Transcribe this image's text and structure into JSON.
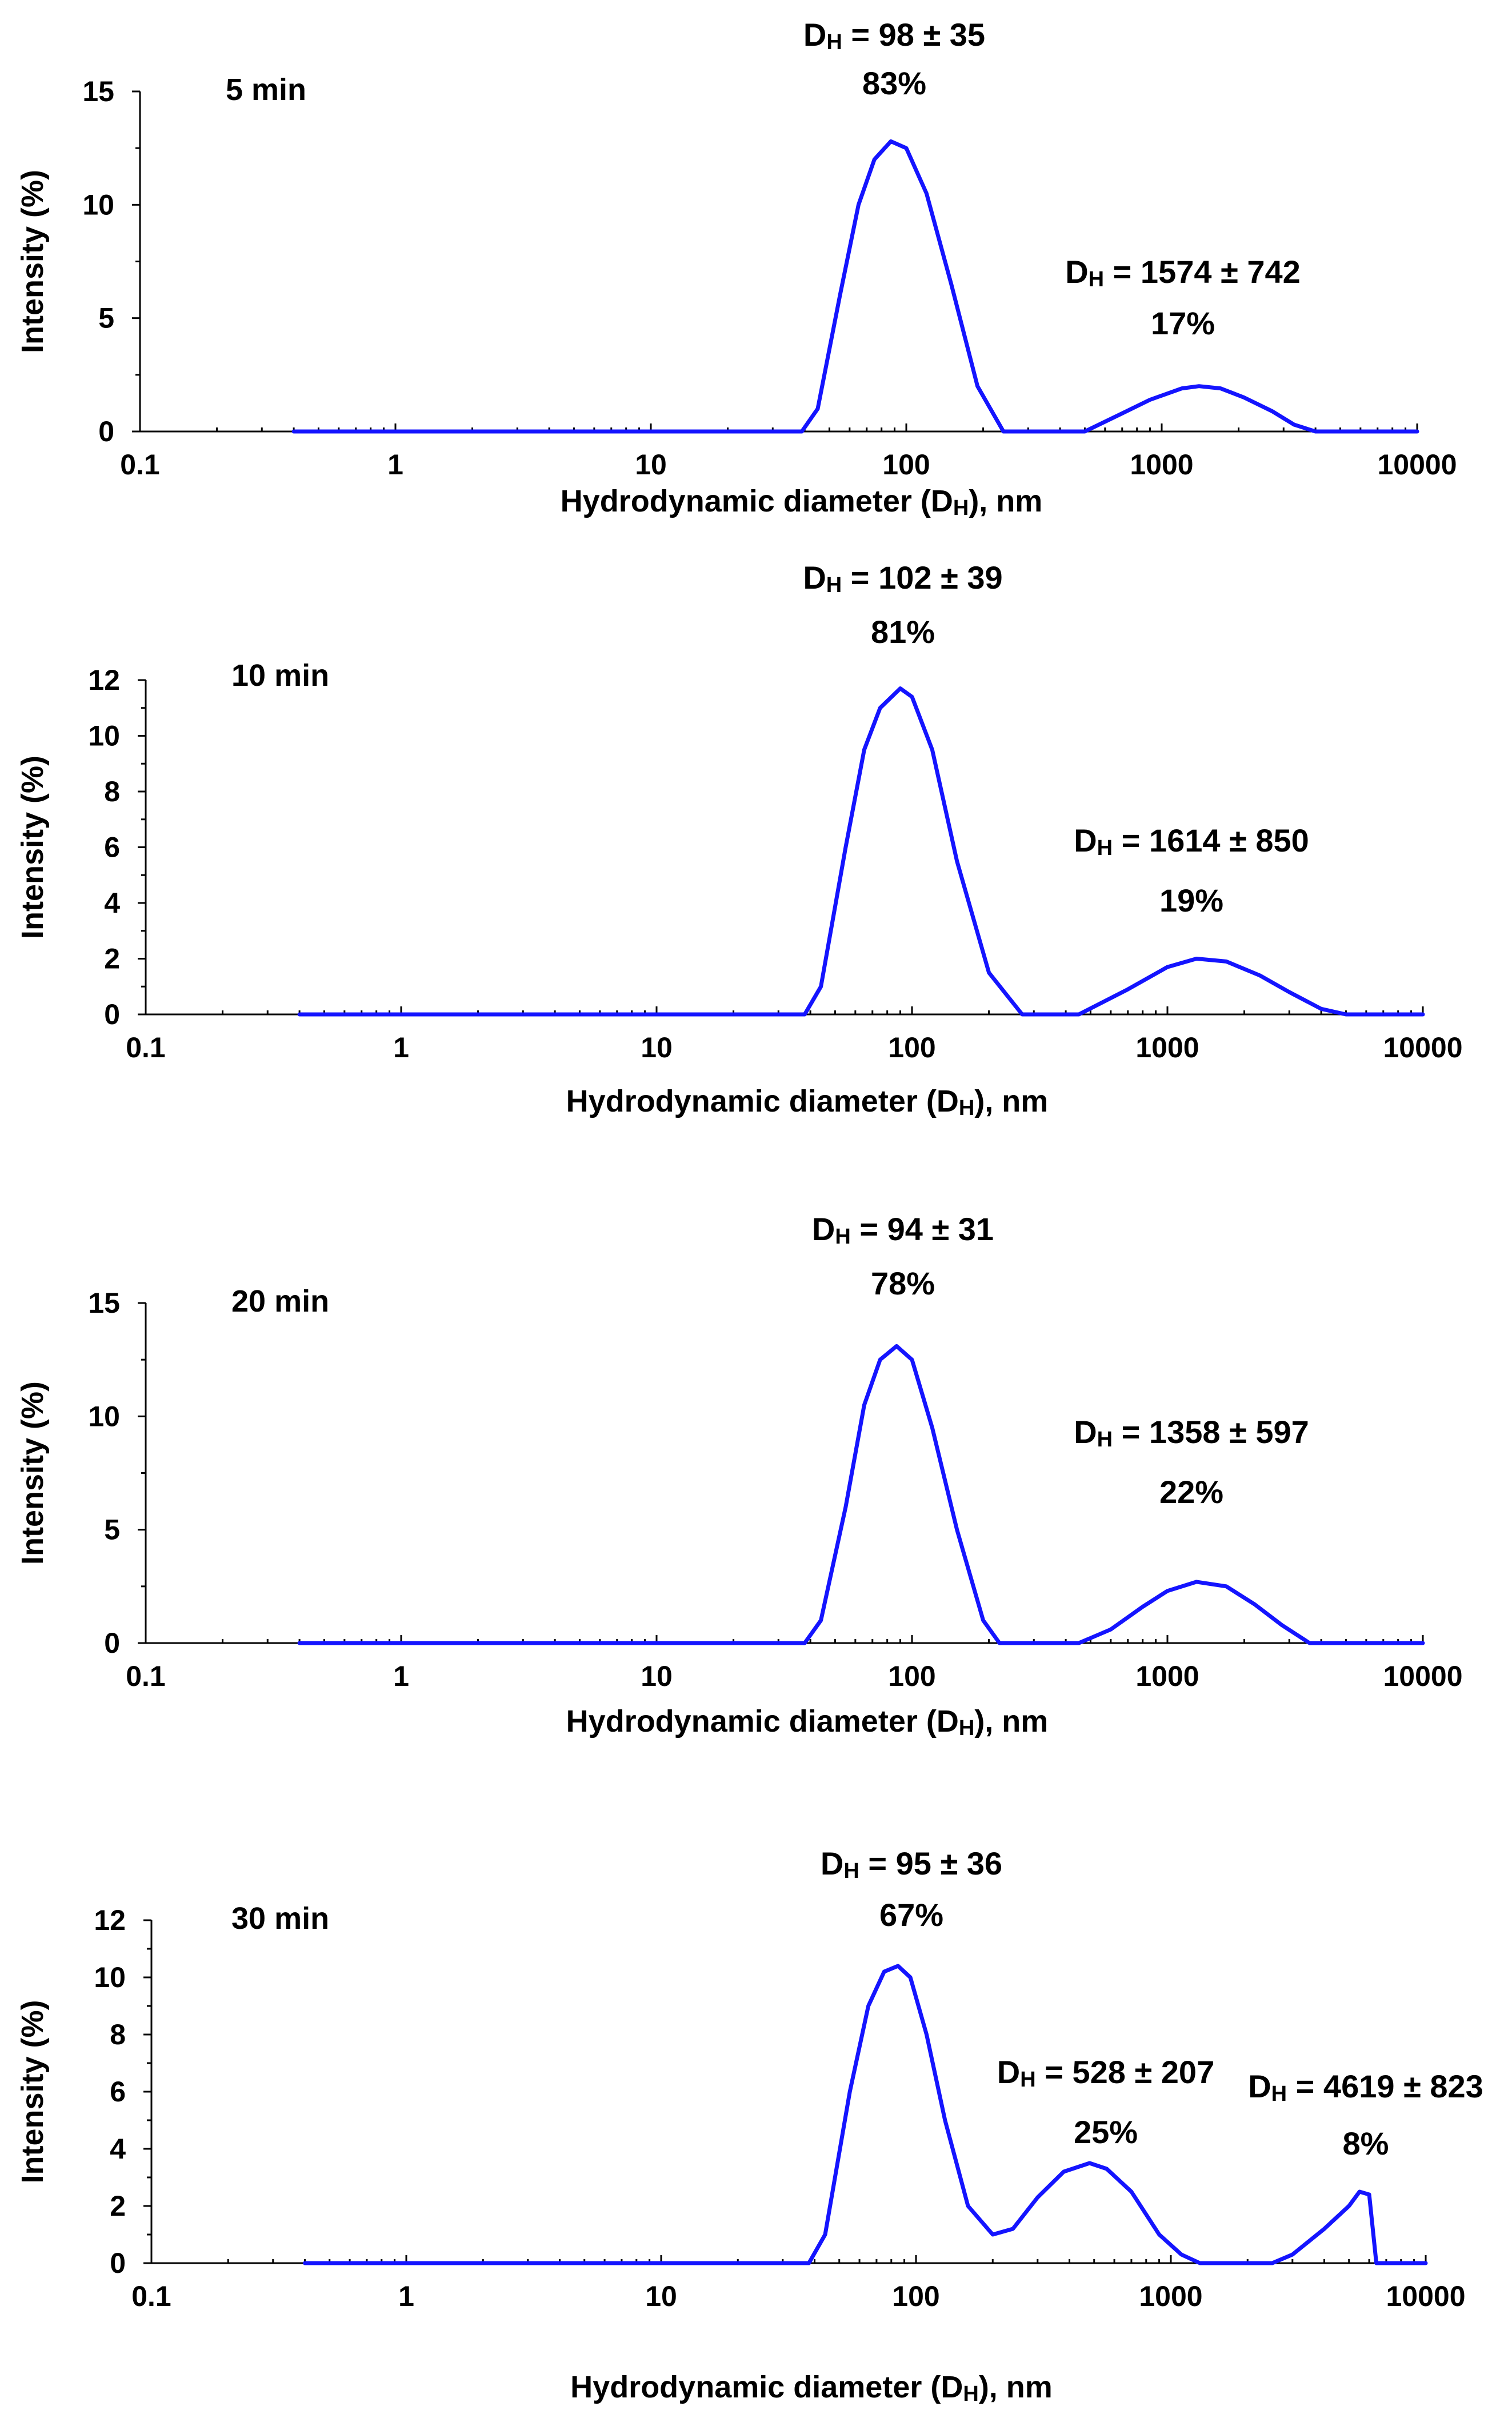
{
  "figure": {
    "colors": {
      "series": "#1414FF",
      "axis": "#000000",
      "background": "#FFFFFF"
    }
  },
  "chart_data": [
    {
      "type": "line",
      "panel_label": "5 min",
      "xscale": "log",
      "xlim": [
        0.1,
        10000
      ],
      "x_ticks": [
        "0.1",
        "1",
        "10",
        "100",
        "1000",
        "10000"
      ],
      "ylim": [
        0,
        15
      ],
      "y_ticks": [
        "0",
        "5",
        "10",
        "15"
      ],
      "xlabel": "Hydrodynamic diameter (DH), nm",
      "ylabel": "Intensity (%)",
      "series": [
        {
          "name": "5 min",
          "x": [
            0.4,
            10,
            39,
            45,
            55,
            65,
            75,
            87,
            100,
            120,
            150,
            190,
            240,
            300,
            400,
            500,
            700,
            900,
            1200,
            1400,
            1700,
            2100,
            2700,
            3300,
            4000,
            5000,
            10000
          ],
          "y": [
            0,
            0,
            0,
            1.0,
            6.0,
            10.0,
            12.0,
            12.8,
            12.5,
            10.5,
            6.5,
            2.0,
            0,
            0,
            0,
            0,
            0.8,
            1.4,
            1.9,
            2.0,
            1.9,
            1.5,
            0.9,
            0.3,
            0,
            0,
            0
          ]
        }
      ],
      "annotations": [
        {
          "text": "DH = 98 ± 35",
          "percent": "83%"
        },
        {
          "text": "DH = 1574 ± 742",
          "percent": "17%"
        }
      ]
    },
    {
      "type": "line",
      "panel_label": "10 min",
      "xscale": "log",
      "xlim": [
        0.1,
        10000
      ],
      "x_ticks": [
        "0.1",
        "1",
        "10",
        "100",
        "1000",
        "10000"
      ],
      "ylim": [
        0,
        12
      ],
      "y_ticks": [
        "0",
        "2",
        "4",
        "6",
        "8",
        "10",
        "12"
      ],
      "xlabel": "Hydrodynamic diameter (DH), nm",
      "ylabel": "Intensity (%)",
      "series": [
        {
          "name": "10 min",
          "x": [
            0.4,
            10,
            38,
            44,
            55,
            65,
            75,
            90,
            100,
            120,
            150,
            200,
            270,
            350,
            450,
            700,
            1000,
            1300,
            1700,
            2300,
            3000,
            4000,
            5000,
            10000
          ],
          "y": [
            0,
            0,
            0,
            1.0,
            6.0,
            9.5,
            11.0,
            11.7,
            11.4,
            9.5,
            5.5,
            1.5,
            0,
            0,
            0,
            0.9,
            1.7,
            2.0,
            1.9,
            1.4,
            0.8,
            0.2,
            0,
            0
          ]
        }
      ],
      "annotations": [
        {
          "text": "DH = 102 ± 39",
          "percent": "81%"
        },
        {
          "text": "DH = 1614 ± 850",
          "percent": "19%"
        }
      ]
    },
    {
      "type": "line",
      "panel_label": "20 min",
      "xscale": "log",
      "xlim": [
        0.1,
        10000
      ],
      "x_ticks": [
        "0.1",
        "1",
        "10",
        "100",
        "1000",
        "10000"
      ],
      "ylim": [
        0,
        15
      ],
      "y_ticks": [
        "0",
        "5",
        "10",
        "15"
      ],
      "xlabel": "Hydrodynamic diameter (DH), nm",
      "ylabel": "Intensity (%)",
      "series": [
        {
          "name": "20 min",
          "x": [
            0.4,
            10,
            38,
            44,
            55,
            65,
            75,
            87,
            100,
            120,
            150,
            190,
            220,
            300,
            450,
            600,
            800,
            1000,
            1300,
            1700,
            2200,
            2800,
            3600,
            10000
          ],
          "y": [
            0,
            0,
            0,
            1.0,
            6.0,
            10.5,
            12.5,
            13.1,
            12.5,
            9.5,
            5.0,
            1.0,
            0,
            0,
            0,
            0.6,
            1.6,
            2.3,
            2.7,
            2.5,
            1.7,
            0.8,
            0,
            0
          ]
        }
      ],
      "annotations": [
        {
          "text": "DH = 94 ± 31",
          "percent": "78%"
        },
        {
          "text": "DH = 1358 ± 597",
          "percent": "22%"
        }
      ]
    },
    {
      "type": "line",
      "panel_label": "30 min",
      "xscale": "log",
      "xlim": [
        0.1,
        10000
      ],
      "x_ticks": [
        "0.1",
        "1",
        "10",
        "100",
        "1000",
        "10000"
      ],
      "ylim": [
        0,
        12
      ],
      "y_ticks": [
        "0",
        "2",
        "4",
        "6",
        "8",
        "10",
        "12"
      ],
      "xlabel": "Hydrodynamic diameter (DH), nm",
      "ylabel": "Intensity (%)",
      "series": [
        {
          "name": "30 min",
          "x": [
            0.4,
            10,
            38,
            44,
            55,
            65,
            75,
            85,
            95,
            110,
            130,
            160,
            200,
            240,
            300,
            380,
            480,
            560,
            700,
            900,
            1100,
            1300,
            2000,
            2500,
            3000,
            4000,
            5000,
            5500,
            6000,
            6400,
            10000
          ],
          "y": [
            0,
            0,
            0,
            1.0,
            6.0,
            9.0,
            10.2,
            10.4,
            10.0,
            8.0,
            5.0,
            2.0,
            1.0,
            1.2,
            2.3,
            3.2,
            3.5,
            3.3,
            2.5,
            1.0,
            0.3,
            0,
            0,
            0,
            0.3,
            1.2,
            2.0,
            2.5,
            2.4,
            0,
            0
          ]
        }
      ],
      "annotations": [
        {
          "text": "DH = 95 ± 36",
          "percent": "67%"
        },
        {
          "text": "DH = 528 ± 207",
          "percent": "25%"
        },
        {
          "text": "DH = 4619 ± 823",
          "percent": "8%"
        }
      ]
    }
  ]
}
